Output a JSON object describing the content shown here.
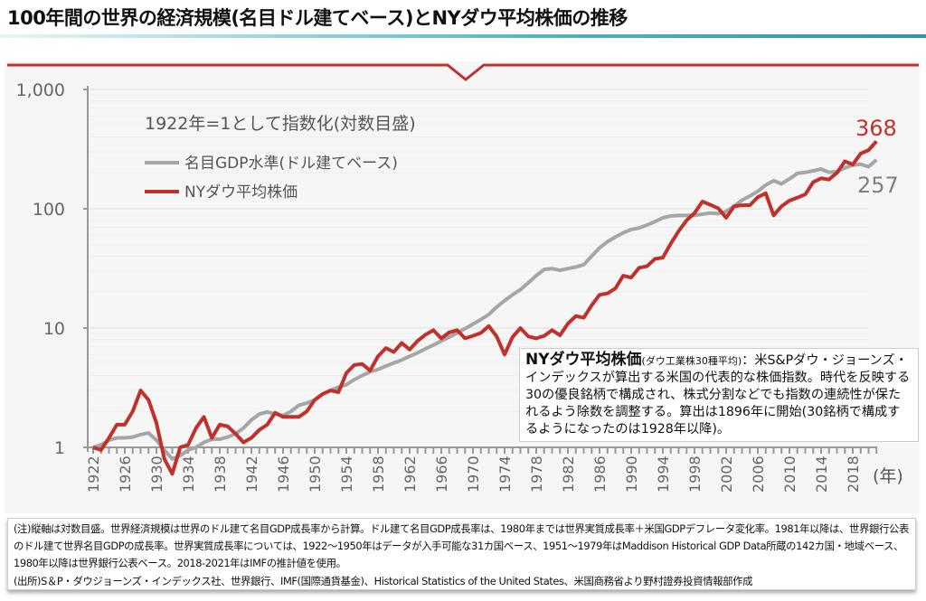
{
  "title": "100年間の世界の経済規模(名目ドル建てベース)とNYダウ平均株価の推移",
  "chart_data": {
    "type": "line",
    "title": "100年間の世界の経済規模(名目ドル建てベース)とNYダウ平均株価の推移",
    "subtitle": "1922年=1として指数化(対数目盛)",
    "xlabel": "(年)",
    "ylabel": "",
    "yscale": "log",
    "ylim": [
      1,
      1000
    ],
    "xlim": [
      1922,
      2021
    ],
    "y_ticks": [
      "1,000",
      "100",
      "10",
      "1"
    ],
    "x_ticks": [
      "1922",
      "1926",
      "1930",
      "1934",
      "1938",
      "1942",
      "1946",
      "1950",
      "1954",
      "1958",
      "1962",
      "1966",
      "1970",
      "1974",
      "1978",
      "1982",
      "1986",
      "1990",
      "1994",
      "1998",
      "2002",
      "2006",
      "2010",
      "2014",
      "2018"
    ],
    "legend_position": "top-left",
    "x_start": 1922,
    "series": [
      {
        "name": "名目GDP水準(ドル建てベース)",
        "color": "#a6a6a6",
        "end_label": "257",
        "values": [
          1,
          1.05,
          1.15,
          1.2,
          1.2,
          1.22,
          1.28,
          1.32,
          1.15,
          0.95,
          0.8,
          0.85,
          0.95,
          1.0,
          1.1,
          1.17,
          1.17,
          1.22,
          1.3,
          1.45,
          1.7,
          1.9,
          1.98,
          1.9,
          1.85,
          2.0,
          2.25,
          2.35,
          2.5,
          2.8,
          3.0,
          3.2,
          3.35,
          3.7,
          4.0,
          4.3,
          4.5,
          4.8,
          5.1,
          5.4,
          5.8,
          6.2,
          6.7,
          7.2,
          7.8,
          8.4,
          9.1,
          9.9,
          10.8,
          11.8,
          13,
          15,
          17,
          19,
          21,
          24,
          27.5,
          31,
          31.5,
          30.5,
          31.5,
          32.5,
          34,
          40,
          47,
          53,
          58,
          63,
          67,
          69,
          73,
          78,
          84,
          87,
          88,
          88,
          88,
          90,
          92,
          91,
          95,
          105,
          118,
          128,
          140,
          158,
          172,
          162,
          178,
          198,
          202,
          208,
          215,
          202,
          205,
          220,
          232,
          236,
          225,
          257
        ]
      },
      {
        "name": "NYダウ平均株価",
        "color": "#c0312b",
        "end_label": "368",
        "values": [
          1,
          0.95,
          1.2,
          1.55,
          1.55,
          2.0,
          3.0,
          2.5,
          1.6,
          0.8,
          0.6,
          1.0,
          1.05,
          1.45,
          1.8,
          1.2,
          1.55,
          1.5,
          1.3,
          1.1,
          1.2,
          1.4,
          1.55,
          1.95,
          1.8,
          1.8,
          1.8,
          2.0,
          2.5,
          2.8,
          3.0,
          2.9,
          4.2,
          4.9,
          5.0,
          4.4,
          5.8,
          6.8,
          6.3,
          7.5,
          6.6,
          7.8,
          8.8,
          9.6,
          8.2,
          9.2,
          9.6,
          8.2,
          8.6,
          9.1,
          10.4,
          8.5,
          6.0,
          8.4,
          10.0,
          8.5,
          8.2,
          8.6,
          9.6,
          8.7,
          10.9,
          12.6,
          12.2,
          15.5,
          19,
          19.5,
          21.5,
          27.5,
          26.5,
          32,
          33,
          38,
          39,
          51,
          65,
          80,
          92,
          115,
          108,
          101,
          84,
          105,
          107,
          107,
          125,
          135,
          88,
          105,
          117,
          124,
          132,
          167,
          180,
          176,
          200,
          250,
          235,
          290,
          310,
          368
        ]
      }
    ]
  },
  "annotation": {
    "heading": "NYダウ平均株価",
    "sub": "(ダウ工業株30種平均)",
    "body": "：米S&Pダウ・ジョーンズ・インデックスが算出する米国の代表的な株価指数。時代を反映する30の優良銘柄で構成され、株式分割などでも指数の連続性が保たれるよう除数を調整する。算出は1896年に開始(30銘柄で構成するようになったのは1928年以降)。"
  },
  "notes": [
    "(注)縦軸は対数目盛。世界経済規模は世界のドル建て名目GDP成長率から計算。ドル建て名目GDP成長率は、1980年までは世界実質成長率＋米国GDPデフレータ変化率。1981年以降は、世界銀行公表のドル建て世界名目GDPの成長率。世界実質成長率については、1922～1950年はデータが入手可能な31カ国ベース、1951～1979年はMaddison Historical GDP Data所蔵の142カ国・地域ベース、1980年以降は世界銀行公表ベース。2018-2021年はIMFの推計値を使用。",
    "(出所)S＆P・ダウジョーンズ・インデックス社、世界銀行、IMF(国際通貨基金)、Historical Statistics of the United States、米国商務省より野村證券投資情報部作成"
  ]
}
